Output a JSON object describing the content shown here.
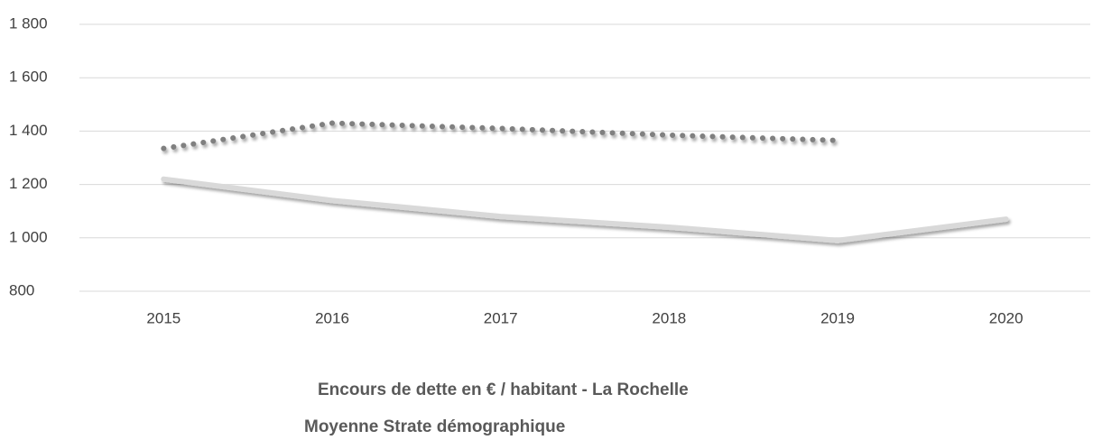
{
  "chart_data": {
    "type": "line",
    "categories": [
      "2015",
      "2016",
      "2017",
      "2018",
      "2019",
      "2020"
    ],
    "series": [
      {
        "name": "Encours de dette en € / habitant - La Rochelle",
        "color": "#d9d9d9",
        "style": "solid",
        "values": [
          1220,
          1140,
          1080,
          1040,
          990,
          1070
        ]
      },
      {
        "name": "Moyenne Strate démographique",
        "color": "#808080",
        "style": "dotted",
        "values": [
          1335,
          1430,
          1410,
          1385,
          1365,
          null
        ]
      }
    ],
    "ylim": [
      800,
      1800
    ],
    "yticks": [
      800,
      {
        "value": 1000,
        "label": "1 000"
      },
      {
        "value": 1200,
        "label": "1 200"
      },
      {
        "value": 1400,
        "label": "1 400"
      },
      {
        "value": 1600,
        "label": "1 600"
      },
      {
        "value": 1800,
        "label": "1 800"
      }
    ],
    "grid": true,
    "legend": "bottom"
  }
}
